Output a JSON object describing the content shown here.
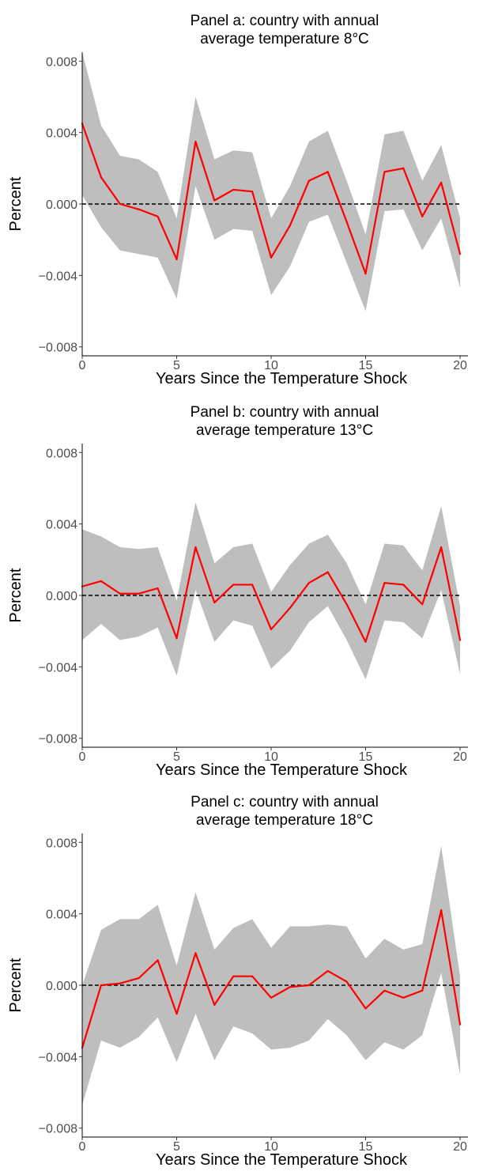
{
  "chart_data": [
    {
      "type": "line",
      "title": "Panel a: country with annual average temperature 8°C",
      "title_lines": [
        "Panel a: country with annual",
        "average temperature 8°C"
      ],
      "xlabel": "Years Since the Temperature Shock",
      "ylabel": "Percent",
      "xlim": [
        0,
        20
      ],
      "ylim": [
        -0.0085,
        0.0085
      ],
      "x_ticks": [
        0,
        5,
        10,
        15,
        20
      ],
      "x_tick_labels": [
        "0",
        "5",
        "10",
        "15",
        "20"
      ],
      "y_ticks": [
        -0.008,
        -0.004,
        0,
        0.004,
        0.008
      ],
      "y_tick_labels": [
        "−0.008",
        "−0.004",
        "0.000",
        "0.004",
        "0.008"
      ],
      "grid": false,
      "reference_line": 0,
      "x": [
        0,
        1,
        2,
        3,
        4,
        5,
        6,
        7,
        8,
        9,
        10,
        11,
        12,
        13,
        14,
        15,
        16,
        17,
        18,
        19,
        20
      ],
      "estimate": [
        0.0045,
        0.0015,
        0.0,
        -0.0003,
        -0.0007,
        -0.0031,
        0.0035,
        0.0002,
        0.0008,
        0.0007,
        -0.003,
        -0.0012,
        0.0013,
        0.0018,
        -0.001,
        -0.0039,
        0.0018,
        0.002,
        -0.0007,
        0.0012,
        -0.0028
      ],
      "lower": [
        0.0005,
        -0.0013,
        -0.0026,
        -0.0028,
        -0.003,
        -0.0053,
        0.001,
        -0.002,
        -0.0014,
        -0.0015,
        -0.0051,
        -0.0035,
        -0.001,
        -0.0006,
        -0.0033,
        -0.006,
        -0.0004,
        -0.0003,
        -0.0026,
        -0.0008,
        -0.0047
      ],
      "upper": [
        0.0085,
        0.0044,
        0.0027,
        0.0025,
        0.0018,
        -0.0008,
        0.006,
        0.0025,
        0.003,
        0.0029,
        -0.0008,
        0.001,
        0.0035,
        0.0041,
        0.0013,
        -0.0017,
        0.0039,
        0.0041,
        0.0013,
        0.0033,
        -0.0008
      ],
      "colors": {
        "estimate": "#ff0000",
        "band": "#bebebe",
        "reference": "#000000"
      }
    },
    {
      "type": "line",
      "title": "Panel b: country with annual average temperature 13°C",
      "title_lines": [
        "Panel b: country with annual",
        "average temperature 13°C"
      ],
      "xlabel": "Years Since the Temperature Shock",
      "ylabel": "Percent",
      "xlim": [
        0,
        20
      ],
      "ylim": [
        -0.0085,
        0.0085
      ],
      "x_ticks": [
        0,
        5,
        10,
        15,
        20
      ],
      "x_tick_labels": [
        "0",
        "5",
        "10",
        "15",
        "20"
      ],
      "y_ticks": [
        -0.008,
        -0.004,
        0,
        0.004,
        0.008
      ],
      "y_tick_labels": [
        "−0.008",
        "−0.004",
        "0.000",
        "0.004",
        "0.008"
      ],
      "grid": false,
      "reference_line": 0,
      "x": [
        0,
        1,
        2,
        3,
        4,
        5,
        6,
        7,
        8,
        9,
        10,
        11,
        12,
        13,
        14,
        15,
        16,
        17,
        18,
        19,
        20
      ],
      "estimate": [
        0.0005,
        0.0008,
        0.0001,
        0.0001,
        0.0004,
        -0.0024,
        0.0027,
        -0.0004,
        0.0006,
        0.0006,
        -0.0019,
        -0.0007,
        0.0007,
        0.0013,
        -0.0005,
        -0.0026,
        0.0007,
        0.0006,
        -0.0005,
        0.0027,
        -0.0025
      ],
      "lower": [
        -0.0025,
        -0.0016,
        -0.0025,
        -0.0023,
        -0.0018,
        -0.0045,
        0.0003,
        -0.0026,
        -0.0014,
        -0.0017,
        -0.0041,
        -0.0031,
        -0.0015,
        -0.0006,
        -0.0025,
        -0.0047,
        -0.0014,
        -0.0015,
        -0.0024,
        0.0003,
        -0.0044
      ],
      "upper": [
        0.0037,
        0.0033,
        0.0027,
        0.0026,
        0.0027,
        -0.0003,
        0.0052,
        0.0018,
        0.0027,
        0.0029,
        0.0002,
        0.0017,
        0.0029,
        0.0034,
        0.0018,
        -0.0005,
        0.0029,
        0.0028,
        0.0014,
        0.005,
        -0.0006
      ],
      "colors": {
        "estimate": "#ff0000",
        "band": "#bebebe",
        "reference": "#000000"
      }
    },
    {
      "type": "line",
      "title": "Panel c: country with annual average temperature 18°C",
      "title_lines": [
        "Panel c: country with annual",
        "average temperature 18°C"
      ],
      "xlabel": "Years Since the Temperature Shock",
      "ylabel": "Percent",
      "xlim": [
        0,
        20
      ],
      "ylim": [
        -0.0085,
        0.0085
      ],
      "x_ticks": [
        0,
        5,
        10,
        15,
        20
      ],
      "x_tick_labels": [
        "0",
        "5",
        "10",
        "15",
        "20"
      ],
      "y_ticks": [
        -0.008,
        -0.004,
        0,
        0.004,
        0.008
      ],
      "y_tick_labels": [
        "−0.008",
        "−0.004",
        "0.000",
        "0.004",
        "0.008"
      ],
      "grid": false,
      "reference_line": 0,
      "x": [
        0,
        1,
        2,
        3,
        4,
        5,
        6,
        7,
        8,
        9,
        10,
        11,
        12,
        13,
        14,
        15,
        16,
        17,
        18,
        19,
        20
      ],
      "estimate": [
        -0.0035,
        0.0,
        0.0001,
        0.0004,
        0.0014,
        -0.0016,
        0.0018,
        -0.0011,
        0.0005,
        0.0005,
        -0.0007,
        -0.0001,
        0.0,
        0.0008,
        0.0002,
        -0.0013,
        -0.0003,
        -0.0007,
        -0.0003,
        0.0042,
        -0.0022
      ],
      "lower": [
        -0.0067,
        -0.0031,
        -0.0035,
        -0.0029,
        -0.0018,
        -0.0043,
        -0.0016,
        -0.0042,
        -0.0023,
        -0.0027,
        -0.0036,
        -0.0035,
        -0.0031,
        -0.0019,
        -0.0028,
        -0.0042,
        -0.0032,
        -0.0036,
        -0.0028,
        0.0007,
        -0.005
      ],
      "upper": [
        0.0,
        0.0031,
        0.0037,
        0.0037,
        0.0045,
        0.0011,
        0.0052,
        0.002,
        0.0032,
        0.0037,
        0.0021,
        0.0033,
        0.0033,
        0.0034,
        0.0033,
        0.0015,
        0.0026,
        0.002,
        0.0023,
        0.0078,
        0.0005
      ],
      "colors": {
        "estimate": "#ff0000",
        "band": "#bebebe",
        "reference": "#000000"
      }
    }
  ]
}
